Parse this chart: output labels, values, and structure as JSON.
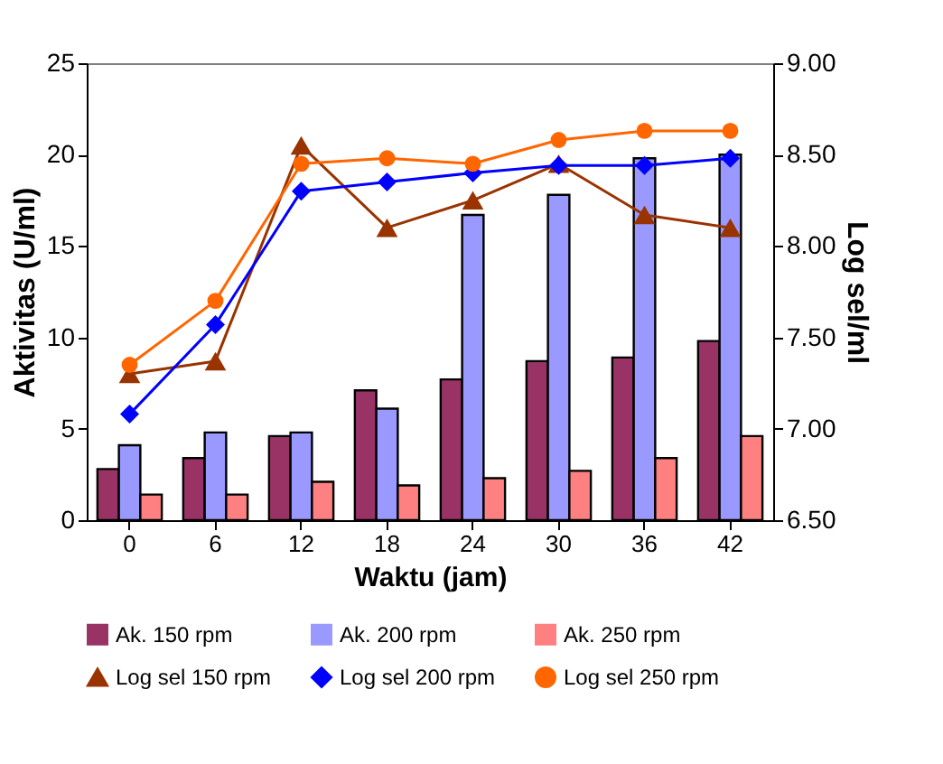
{
  "chart_data": {
    "type": "bar",
    "xlabel": "Waktu (jam)",
    "ylabel": "Aktivitas (U/ml)",
    "y2label": "Log sel/ml",
    "categories": [
      "0",
      "6",
      "12",
      "18",
      "24",
      "30",
      "36",
      "42"
    ],
    "ylim": [
      0,
      25
    ],
    "yticks": [
      0,
      5,
      10,
      15,
      20,
      25
    ],
    "y2lim": [
      6.5,
      9.0
    ],
    "y2ticks": [
      {
        "value": 6.5,
        "label": "6.50"
      },
      {
        "value": 7.0,
        "label": "7.00"
      },
      {
        "value": 7.5,
        "label": "7.50"
      },
      {
        "value": 8.0,
        "label": "8.00"
      },
      {
        "value": 8.5,
        "label": "8.50"
      },
      {
        "value": 9.0,
        "label": "9.00"
      }
    ],
    "grid": false,
    "legend": "bottom",
    "series": [
      {
        "name": "Ak. 150 rpm",
        "color": "#993366",
        "values": [
          2.8,
          3.4,
          4.6,
          7.1,
          7.7,
          8.7,
          8.9,
          9.8
        ]
      },
      {
        "name": "Ak. 200 rpm",
        "color": "#9999ff",
        "values": [
          4.1,
          4.8,
          4.8,
          6.1,
          16.7,
          17.8,
          19.8,
          20.0
        ]
      },
      {
        "name": "Ak. 250 rpm",
        "color": "#ff8080",
        "values": [
          1.4,
          1.4,
          2.1,
          1.9,
          2.3,
          2.7,
          3.4,
          4.6
        ]
      },
      {
        "name": "Log sel 150 rpm",
        "type": "line",
        "axis": "y2",
        "marker": "triangle",
        "color": "#993300",
        "values": [
          7.3,
          7.37,
          8.55,
          8.1,
          8.25,
          8.45,
          8.17,
          8.1
        ]
      },
      {
        "name": "Log sel 200 rpm",
        "type": "line",
        "axis": "y2",
        "marker": "diamond",
        "color": "#0000ff",
        "values": [
          7.08,
          7.57,
          8.3,
          8.35,
          8.4,
          8.44,
          8.44,
          8.48
        ]
      },
      {
        "name": "Log sel 250 rpm",
        "type": "line",
        "axis": "y2",
        "marker": "circle",
        "color": "#ff6600",
        "values": [
          7.35,
          7.7,
          8.45,
          8.48,
          8.45,
          8.58,
          8.63,
          8.63
        ]
      }
    ]
  }
}
